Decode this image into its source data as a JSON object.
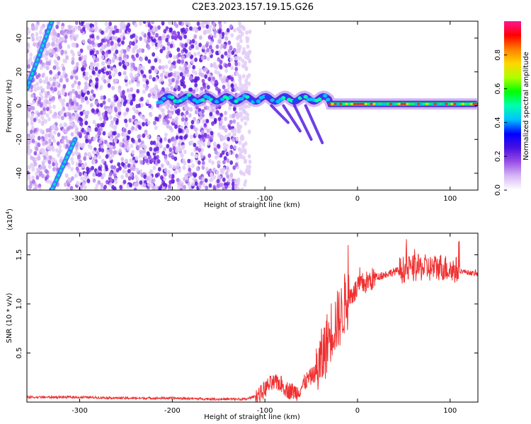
{
  "title": "C2E3.2023.157.19.15.G26",
  "chart_data": [
    {
      "type": "heatmap",
      "name": "spectrogram",
      "xlabel": "Height of straight line (km)",
      "ylabel": "Frequency (Hz)",
      "xlim": [
        -357,
        130
      ],
      "ylim": [
        -50,
        50
      ],
      "xticks": [
        -300,
        -200,
        -100,
        0,
        100
      ],
      "xtick_labels": [
        "-300",
        "-200",
        "-100",
        "0",
        "100"
      ],
      "yticks": [
        -40,
        -20,
        0,
        20,
        40
      ],
      "ytick_labels": [
        "-40",
        "-20",
        "0",
        "20",
        "40"
      ],
      "grid": false,
      "colorbar": {
        "label": "Normalized spectral amplitude",
        "range": [
          0,
          1
        ],
        "ticks": [
          0,
          0.2,
          0.4,
          0.6,
          0.8
        ],
        "tick_labels": [
          "0.0",
          "0.2",
          "0.4",
          "0.6",
          "0.8"
        ],
        "colors": [
          "#ffffff",
          "#d7b8f5",
          "#9a4fe8",
          "#4a10e0",
          "#0000ff",
          "#00c0ff",
          "#00ffb0",
          "#00ff00",
          "#b0ff00",
          "#ffd700",
          "#ff7f00",
          "#ff0000",
          "#ff1493"
        ]
      },
      "features": {
        "noise_band_end_km": -130,
        "carrier_track_start_km": -215,
        "carrier_frequency_hz": 4,
        "strong_carrier_start_km": -30,
        "strong_carrier_frequency_hz": 1,
        "aliased_doppler_lines": [
          {
            "from": [
              -357,
              10
            ],
            "to": [
              -330,
              50
            ]
          },
          {
            "from": [
              -330,
              -50
            ],
            "to": [
              -305,
              -20
            ]
          }
        ]
      }
    },
    {
      "type": "line",
      "name": "snr",
      "xlabel": "Height of straight line (km)",
      "ylabel": "SNR (10 * v/v)",
      "y_scale_label": "(x10",
      "y_scale_exponent": "4",
      "y_scale_suffix": ")",
      "xlim": [
        -357,
        130
      ],
      "ylim": [
        0,
        1.72
      ],
      "xticks": [
        -300,
        -200,
        -100,
        0,
        100
      ],
      "xtick_labels": [
        "-300",
        "-200",
        "-100",
        "0",
        "100"
      ],
      "yticks": [
        0.5,
        1.0,
        1.5
      ],
      "ytick_labels": [
        "0.5",
        "1.0",
        "1.5"
      ],
      "grid": false,
      "color": "#f03030",
      "series": [
        {
          "name": "SNR",
          "x": [
            -357,
            -300,
            -250,
            -200,
            -150,
            -120,
            -105,
            -95,
            -85,
            -75,
            -65,
            -55,
            -45,
            -38,
            -33,
            -28,
            -24,
            -20,
            -17,
            -14,
            -10,
            -6,
            0,
            5,
            10,
            20,
            30,
            40,
            50,
            60,
            70,
            80,
            90,
            100,
            110,
            120,
            130
          ],
          "y": [
            0.05,
            0.05,
            0.04,
            0.04,
            0.03,
            0.03,
            0.08,
            0.18,
            0.2,
            0.12,
            0.1,
            0.22,
            0.3,
            0.45,
            0.6,
            0.75,
            0.8,
            0.85,
            0.9,
            1.0,
            1.05,
            1.1,
            1.15,
            1.2,
            1.22,
            1.27,
            1.3,
            1.33,
            1.35,
            1.36,
            1.37,
            1.36,
            1.38,
            1.35,
            1.34,
            1.32,
            1.3
          ]
        }
      ]
    }
  ]
}
